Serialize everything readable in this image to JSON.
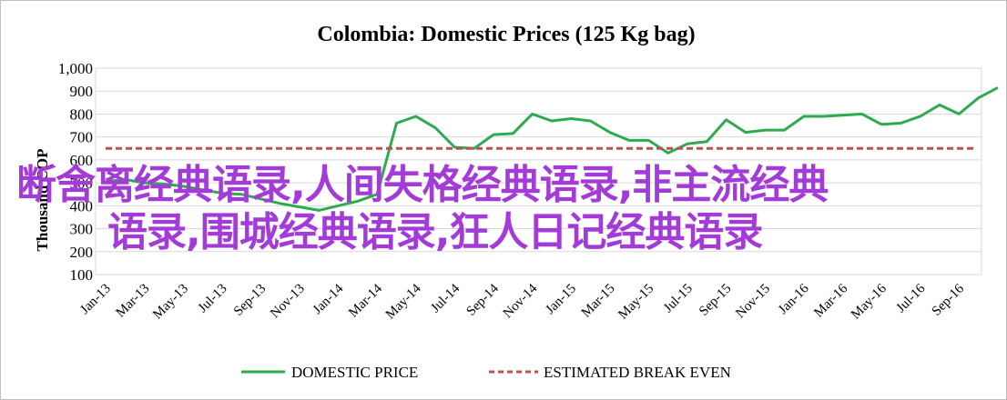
{
  "chart_data": {
    "type": "line",
    "title": "Colombia:  Domestic Prices (125 Kg bag)",
    "ylabel": "Thousand COP",
    "ylim": [
      100,
      1000
    ],
    "yticks": [
      100,
      200,
      300,
      400,
      500,
      600,
      700,
      800,
      900,
      1000
    ],
    "ytick_labels": [
      "100",
      "200",
      "300",
      "400",
      "500",
      "600",
      "700",
      "800",
      "900",
      "1,000"
    ],
    "xtick_labels": [
      "Jan-13",
      "Mar-13",
      "May-13",
      "Jul-13",
      "Sep-13",
      "Nov-13",
      "Jan-14",
      "Mar-14",
      "May-14",
      "Jul-14",
      "Sep-14",
      "Nov-14",
      "Jan-15",
      "Mar-15",
      "May-15",
      "Jul-15",
      "Sep-15",
      "Nov-15",
      "Jan-16",
      "Mar-16",
      "May-16",
      "Jul-16",
      "Sep-16"
    ],
    "x_start": "2013-01",
    "grid": true,
    "legend_position": "bottom",
    "series": [
      {
        "name": "DOMESTIC PRICE",
        "color": "#2eaa4f",
        "style": "solid",
        "values": [
          505,
          515,
          500,
          495,
          485,
          470,
          455,
          450,
          430,
          410,
          395,
          380,
          400,
          420,
          450,
          760,
          790,
          740,
          655,
          650,
          710,
          715,
          800,
          770,
          780,
          770,
          720,
          685,
          685,
          630,
          670,
          680,
          775,
          720,
          730,
          730,
          790,
          790,
          795,
          800,
          755,
          760,
          790,
          840,
          800,
          870,
          915
        ]
      },
      {
        "name": "ESTIMATED BREAK EVEN",
        "color": "#c0504d",
        "style": "dashed",
        "constant": 650
      }
    ]
  },
  "watermark": {
    "line1": "断舍离经典语录,人间失格经典语录,非主流经典",
    "line2": "语录,围城经典语录,狂人日记经典语录"
  }
}
